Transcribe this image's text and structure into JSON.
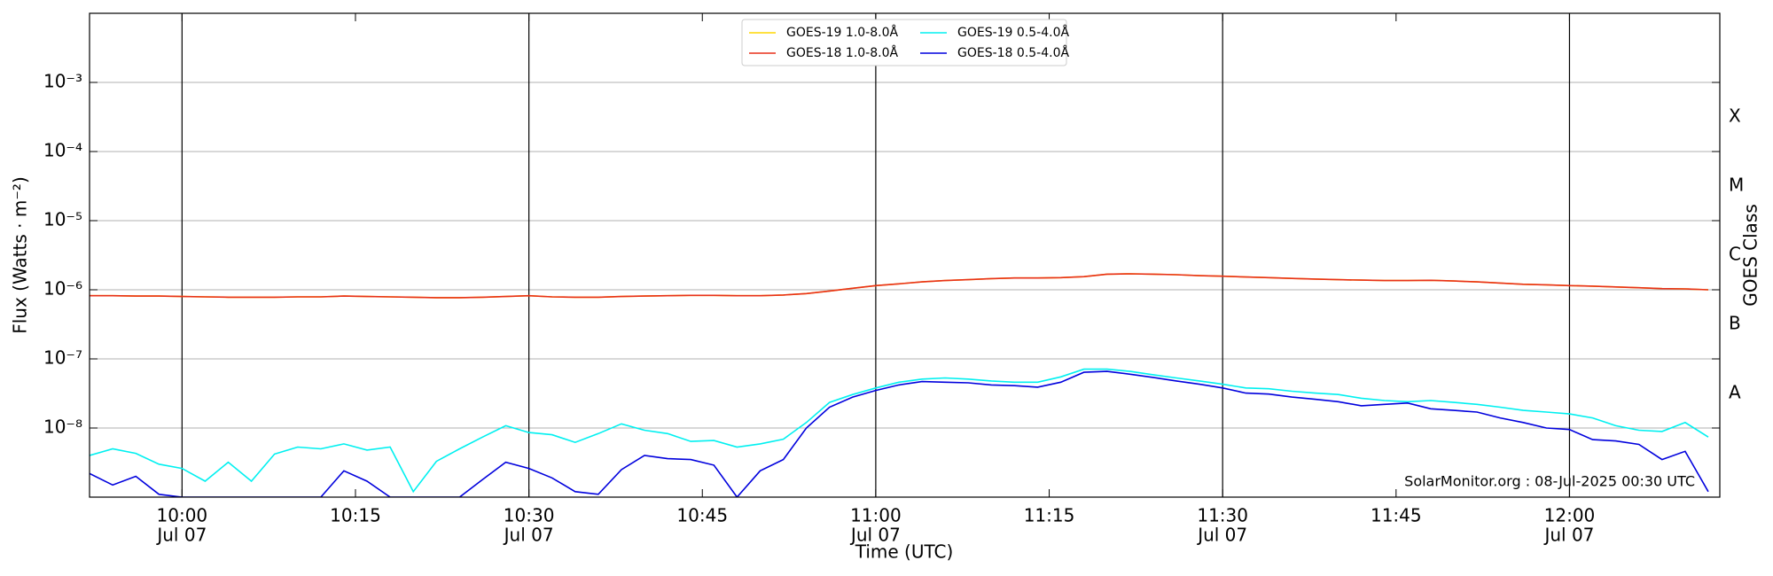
{
  "chart_data": {
    "type": "line",
    "ylabel": "Flux (Watts · m⁻²)",
    "xlabel": "Time (UTC)",
    "y2label": "GOES Class",
    "annotation": "SolarMonitor.org : 08-Jul-2025 00:30 UTC",
    "log_y": true,
    "grid": true,
    "legend": "top",
    "xlim": [
      "09:52",
      "12:13"
    ],
    "ylim": [
      1e-09,
      0.01
    ],
    "yticks": [
      {
        "value": 1e-08,
        "label": "10⁻⁸"
      },
      {
        "value": 1e-07,
        "label": "10⁻⁷"
      },
      {
        "value": 1e-06,
        "label": "10⁻⁶"
      },
      {
        "value": 1e-05,
        "label": "10⁻⁵"
      },
      {
        "value": 0.0001,
        "label": "10⁻⁴"
      },
      {
        "value": 0.001,
        "label": "10⁻³"
      }
    ],
    "y2ticks": [
      {
        "value": 3.16e-08,
        "label": "A"
      },
      {
        "value": 3.16e-07,
        "label": "B"
      },
      {
        "value": 3.16e-06,
        "label": "C"
      },
      {
        "value": 3.16e-05,
        "label": "M"
      },
      {
        "value": 0.000316,
        "label": "X"
      }
    ],
    "xticks": [
      {
        "value": "10:00",
        "label": "10:00",
        "date": "Jul 07"
      },
      {
        "value": "10:15",
        "label": "10:15"
      },
      {
        "value": "10:30",
        "label": "10:30",
        "date": "Jul 07"
      },
      {
        "value": "10:45",
        "label": "10:45"
      },
      {
        "value": "11:00",
        "label": "11:00",
        "date": "Jul 07"
      },
      {
        "value": "11:15",
        "label": "11:15"
      },
      {
        "value": "11:30",
        "label": "11:30",
        "date": "Jul 07"
      },
      {
        "value": "11:45",
        "label": "11:45"
      },
      {
        "value": "12:00",
        "label": "12:00",
        "date": "Jul 07"
      }
    ],
    "x": [
      "09:52",
      "09:54",
      "09:56",
      "09:58",
      "10:00",
      "10:02",
      "10:04",
      "10:06",
      "10:08",
      "10:10",
      "10:12",
      "10:14",
      "10:16",
      "10:18",
      "10:20",
      "10:22",
      "10:24",
      "10:26",
      "10:28",
      "10:30",
      "10:32",
      "10:34",
      "10:36",
      "10:38",
      "10:40",
      "10:42",
      "10:44",
      "10:46",
      "10:48",
      "10:50",
      "10:52",
      "10:54",
      "10:56",
      "10:58",
      "11:00",
      "11:02",
      "11:04",
      "11:06",
      "11:08",
      "11:10",
      "11:12",
      "11:14",
      "11:16",
      "11:18",
      "11:20",
      "11:22",
      "11:24",
      "11:26",
      "11:28",
      "11:30",
      "11:32",
      "11:34",
      "11:36",
      "11:38",
      "11:40",
      "11:42",
      "11:44",
      "11:46",
      "11:48",
      "11:50",
      "11:52",
      "11:54",
      "11:56",
      "11:58",
      "12:00",
      "12:02",
      "12:04",
      "12:06",
      "12:08",
      "12:10",
      "12:12"
    ],
    "series": [
      {
        "name": "GOES-19 1.0-8.0Å",
        "color": "#ffd700",
        "values": [
          8.2e-07,
          8.2e-07,
          8.1e-07,
          8.1e-07,
          8e-07,
          7.9e-07,
          7.8e-07,
          7.8e-07,
          7.8e-07,
          7.9e-07,
          7.9e-07,
          8.1e-07,
          8e-07,
          7.9e-07,
          7.8e-07,
          7.7e-07,
          7.7e-07,
          7.8e-07,
          8e-07,
          8.2e-07,
          7.9e-07,
          7.8e-07,
          7.8e-07,
          8e-07,
          8.1e-07,
          8.2e-07,
          8.3e-07,
          8.3e-07,
          8.2e-07,
          8.2e-07,
          8.4e-07,
          8.8e-07,
          9.6e-07,
          1.05e-06,
          1.15e-06,
          1.22e-06,
          1.3e-06,
          1.36e-06,
          1.4e-06,
          1.45e-06,
          1.48e-06,
          1.48e-06,
          1.5e-06,
          1.55e-06,
          1.68e-06,
          1.7e-06,
          1.68e-06,
          1.65e-06,
          1.6e-06,
          1.57e-06,
          1.53e-06,
          1.5e-06,
          1.46e-06,
          1.43e-06,
          1.4e-06,
          1.38e-06,
          1.36e-06,
          1.36e-06,
          1.37e-06,
          1.34e-06,
          1.3e-06,
          1.25e-06,
          1.2e-06,
          1.18e-06,
          1.15e-06,
          1.13e-06,
          1.1e-06,
          1.07e-06,
          1.04e-06,
          1.03e-06,
          1e-06
        ]
      },
      {
        "name": "GOES-18 1.0-8.0Å",
        "color": "#e8301a",
        "values": [
          8.2e-07,
          8.2e-07,
          8.1e-07,
          8.1e-07,
          8e-07,
          7.9e-07,
          7.8e-07,
          7.8e-07,
          7.8e-07,
          7.9e-07,
          7.9e-07,
          8.1e-07,
          8e-07,
          7.9e-07,
          7.8e-07,
          7.7e-07,
          7.7e-07,
          7.8e-07,
          8e-07,
          8.2e-07,
          7.9e-07,
          7.8e-07,
          7.8e-07,
          8e-07,
          8.1e-07,
          8.2e-07,
          8.3e-07,
          8.3e-07,
          8.2e-07,
          8.2e-07,
          8.4e-07,
          8.8e-07,
          9.6e-07,
          1.05e-06,
          1.15e-06,
          1.22e-06,
          1.3e-06,
          1.36e-06,
          1.4e-06,
          1.45e-06,
          1.48e-06,
          1.48e-06,
          1.5e-06,
          1.55e-06,
          1.68e-06,
          1.7e-06,
          1.68e-06,
          1.65e-06,
          1.6e-06,
          1.57e-06,
          1.53e-06,
          1.5e-06,
          1.46e-06,
          1.43e-06,
          1.4e-06,
          1.38e-06,
          1.36e-06,
          1.36e-06,
          1.37e-06,
          1.34e-06,
          1.3e-06,
          1.25e-06,
          1.2e-06,
          1.18e-06,
          1.15e-06,
          1.13e-06,
          1.1e-06,
          1.07e-06,
          1.04e-06,
          1.03e-06,
          1e-06
        ]
      },
      {
        "name": "GOES-19 0.5-4.0Å",
        "color": "#00f0f0",
        "values": [
          4e-09,
          5e-09,
          4.3e-09,
          3e-09,
          2.6e-09,
          1.7e-09,
          3.2e-09,
          1.7e-09,
          4.2e-09,
          5.3e-09,
          5e-09,
          5.9e-09,
          4.8e-09,
          5.3e-09,
          1.2e-09,
          3.3e-09,
          5e-09,
          7.4e-09,
          1.08e-08,
          8.6e-09,
          8e-09,
          6.2e-09,
          8.3e-09,
          1.15e-08,
          9.3e-09,
          8.3e-09,
          6.4e-09,
          6.6e-09,
          5.3e-09,
          5.9e-09,
          6.9e-09,
          1.2e-08,
          2.35e-08,
          3.05e-08,
          3.8e-08,
          4.6e-08,
          5.1e-08,
          5.3e-08,
          5.1e-08,
          4.8e-08,
          4.6e-08,
          4.6e-08,
          5.5e-08,
          7.1e-08,
          7.1e-08,
          6.6e-08,
          5.9e-08,
          5.3e-08,
          4.8e-08,
          4.3e-08,
          3.8e-08,
          3.7e-08,
          3.4e-08,
          3.2e-08,
          3.05e-08,
          2.7e-08,
          2.5e-08,
          2.4e-08,
          2.5e-08,
          2.35e-08,
          2.2e-08,
          2e-08,
          1.8e-08,
          1.7e-08,
          1.6e-08,
          1.4e-08,
          1.08e-08,
          9.3e-09,
          8.9e-09,
          1.2e-08,
          7.4e-09
        ]
      },
      {
        "name": "GOES-18 0.5-4.0Å",
        "color": "#0000dd",
        "values": [
          2.2e-09,
          1.5e-09,
          2e-09,
          1.1e-09,
          1e-09,
          1e-09,
          1e-09,
          1e-09,
          1e-09,
          1e-09,
          1e-09,
          2.4e-09,
          1.7e-09,
          1e-09,
          1e-09,
          1e-09,
          1e-09,
          1.8e-09,
          3.2e-09,
          2.6e-09,
          1.9e-09,
          1.2e-09,
          1.1e-09,
          2.5e-09,
          4e-09,
          3.6e-09,
          3.5e-09,
          2.9e-09,
          1e-09,
          2.4e-09,
          3.5e-09,
          1e-08,
          2e-08,
          2.8e-08,
          3.5e-08,
          4.2e-08,
          4.7e-08,
          4.6e-08,
          4.5e-08,
          4.2e-08,
          4.1e-08,
          3.9e-08,
          4.6e-08,
          6.4e-08,
          6.6e-08,
          6e-08,
          5.4e-08,
          4.8e-08,
          4.3e-08,
          3.8e-08,
          3.2e-08,
          3.1e-08,
          2.8e-08,
          2.6e-08,
          2.4e-08,
          2.1e-08,
          2.2e-08,
          2.3e-08,
          1.9e-08,
          1.8e-08,
          1.7e-08,
          1.4e-08,
          1.2e-08,
          1e-08,
          9.5e-09,
          6.8e-09,
          6.5e-09,
          5.8e-09,
          3.5e-09,
          4.6e-09,
          1.2e-09
        ]
      }
    ]
  }
}
